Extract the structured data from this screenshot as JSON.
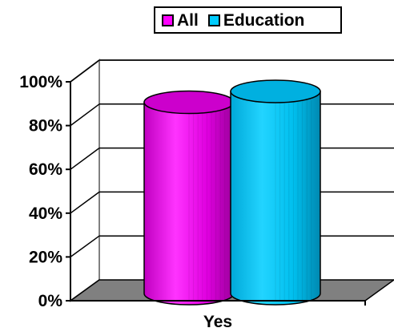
{
  "chart_data": {
    "type": "bar",
    "categories": [
      "Yes"
    ],
    "series": [
      {
        "name": "All",
        "values": [
          88
        ],
        "color": "#ff00ff"
      },
      {
        "name": "Education",
        "values": [
          93
        ],
        "color": "#00ccff"
      }
    ],
    "ylim": [
      0,
      100
    ],
    "y_ticks": [
      "0%",
      "20%",
      "40%",
      "60%",
      "80%",
      "100%"
    ],
    "grid": true,
    "legend_position": "top-right",
    "floor_color": "#808080",
    "shape": "cylinder-3d"
  }
}
